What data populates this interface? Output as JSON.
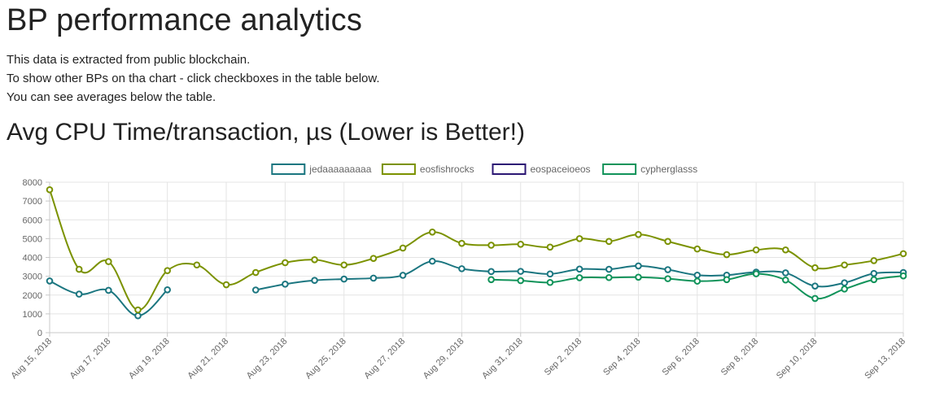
{
  "page": {
    "title": "BP performance analytics",
    "intro": [
      "This data is extracted from public blockchain.",
      "To show other BPs on tha chart - click checkboxes in the table below.",
      "You can see averages below the table."
    ]
  },
  "chart_data": {
    "type": "line",
    "title": "Avg CPU Time/transaction, µs (Lower is Better!)",
    "xlabel": "",
    "ylabel": "",
    "ylim": [
      0,
      8000
    ],
    "yticks": [
      0,
      1000,
      2000,
      3000,
      4000,
      5000,
      6000,
      7000,
      8000
    ],
    "grid": true,
    "legend_position": "top",
    "x": [
      "Aug 15, 2018",
      "Aug 16, 2018",
      "Aug 17, 2018",
      "Aug 18, 2018",
      "Aug 19, 2018",
      "Aug 20, 2018",
      "Aug 21, 2018",
      "Aug 22, 2018",
      "Aug 23, 2018",
      "Aug 24, 2018",
      "Aug 25, 2018",
      "Aug 26, 2018",
      "Aug 27, 2018",
      "Aug 28, 2018",
      "Aug 29, 2018",
      "Aug 30, 2018",
      "Aug 31, 2018",
      "Sep 1, 2018",
      "Sep 2, 2018",
      "Sep 3, 2018",
      "Sep 4, 2018",
      "Sep 5, 2018",
      "Sep 6, 2018",
      "Sep 7, 2018",
      "Sep 8, 2018",
      "Sep 9, 2018",
      "Sep 10, 2018",
      "Sep 11, 2018",
      "Sep 12, 2018",
      "Sep 13, 2018"
    ],
    "xticks": [
      "Aug 15, 2018",
      "Aug 17, 2018",
      "Aug 19, 2018",
      "Aug 21, 2018",
      "Aug 23, 2018",
      "Aug 25, 2018",
      "Aug 27, 2018",
      "Aug 29, 2018",
      "Aug 31, 2018",
      "Sep 2, 2018",
      "Sep 4, 2018",
      "Sep 6, 2018",
      "Sep 8, 2018",
      "Sep 10, 2018",
      "Sep 13, 2018"
    ],
    "series": [
      {
        "name": "jedaaaaaaaaa",
        "color": "#1b7680",
        "values": [
          2750,
          2050,
          2250,
          900,
          2280,
          null,
          null,
          2270,
          2580,
          2780,
          2850,
          2900,
          3050,
          3800,
          3400,
          3250,
          3260,
          3120,
          3380,
          3370,
          3550,
          3350,
          3060,
          3060,
          3220,
          3180,
          2480,
          2650,
          3150,
          3200
        ]
      },
      {
        "name": "eosfishrocks",
        "color": "#7b9200",
        "values": [
          7600,
          3370,
          3780,
          1210,
          3300,
          3600,
          2550,
          3200,
          3720,
          3880,
          3600,
          3950,
          4500,
          5350,
          4750,
          4650,
          4700,
          4550,
          5000,
          4850,
          5220,
          4850,
          4450,
          4150,
          4400,
          4400,
          3450,
          3600,
          3830,
          4200
        ]
      },
      {
        "name": "eospaceioeos",
        "color": "#2c1774",
        "values": [
          null,
          null,
          null,
          null,
          null,
          null,
          null,
          null,
          null,
          null,
          null,
          null,
          null,
          null,
          null,
          null,
          null,
          null,
          null,
          null,
          null,
          null,
          null,
          null,
          null,
          null,
          null,
          null,
          null,
          null
        ]
      },
      {
        "name": "cypherglasss",
        "color": "#11935a",
        "values": [
          null,
          null,
          null,
          null,
          null,
          null,
          null,
          null,
          null,
          null,
          null,
          null,
          null,
          null,
          null,
          2820,
          2770,
          2670,
          2920,
          2930,
          2950,
          2870,
          2740,
          2820,
          3130,
          2800,
          1820,
          2320,
          2820,
          3020
        ]
      }
    ]
  }
}
